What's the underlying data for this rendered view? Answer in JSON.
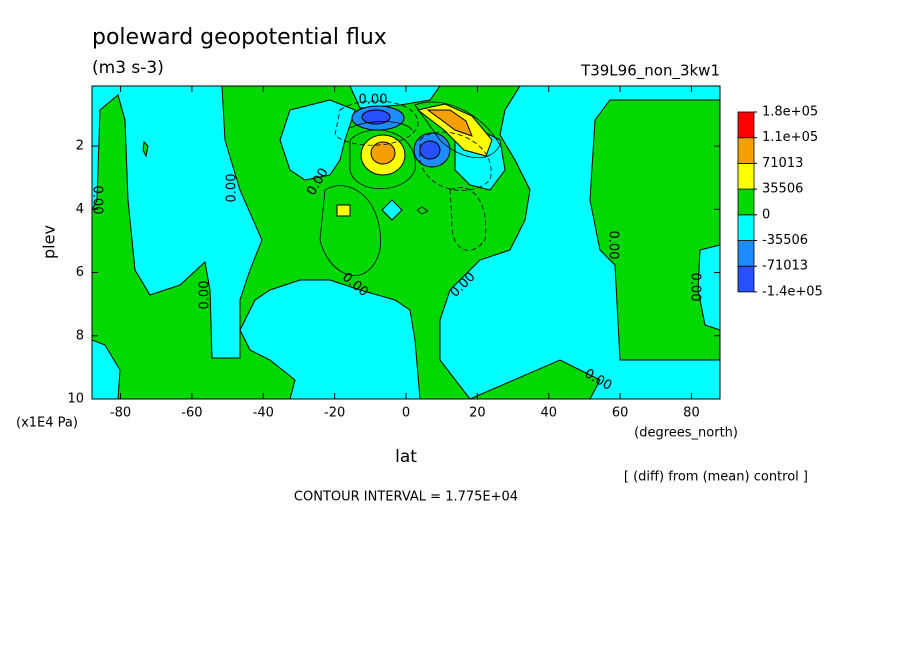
{
  "chart_data": {
    "type": "contour",
    "title": "poleward geopotential flux",
    "subtitle": "(m3 s-3)",
    "run_label": "T39L96_non_3kw1",
    "x_label": "lat",
    "x_unit": "(degrees_north)",
    "y_label": "plev",
    "y_unit": "(x1E4 Pa)",
    "xlim": [
      -88,
      88
    ],
    "ylim": [
      0.1,
      10
    ],
    "y_inverted": true,
    "xticks": [
      -80,
      -60,
      -40,
      -20,
      0,
      20,
      40,
      60,
      80
    ],
    "yticks": [
      2,
      4,
      6,
      8,
      10
    ],
    "colorbar": {
      "ticks": [
        {
          "value": -142025,
          "label": "-1.4e+05"
        },
        -71013,
        -35506,
        0,
        35506,
        71013,
        {
          "value": 106519,
          "label": "1.1e+05"
        },
        {
          "value": 177531,
          "label": "1.8e+05"
        }
      ],
      "colors": [
        "#2850ff",
        "#1e8cff",
        "#00ffff",
        "#00d800",
        "#ffff00",
        "#f5a000",
        "#ff0000"
      ]
    },
    "contour_labels": [
      "0.00",
      "0.00",
      "0.00",
      "0.00",
      "0.00",
      "0.00",
      "0.00",
      "0.00",
      "0.00",
      "0.00"
    ],
    "footnote": "[ (diff) from (mean) control ]",
    "contour_interval": "CONTOUR INTERVAL = 1.775E+04"
  }
}
